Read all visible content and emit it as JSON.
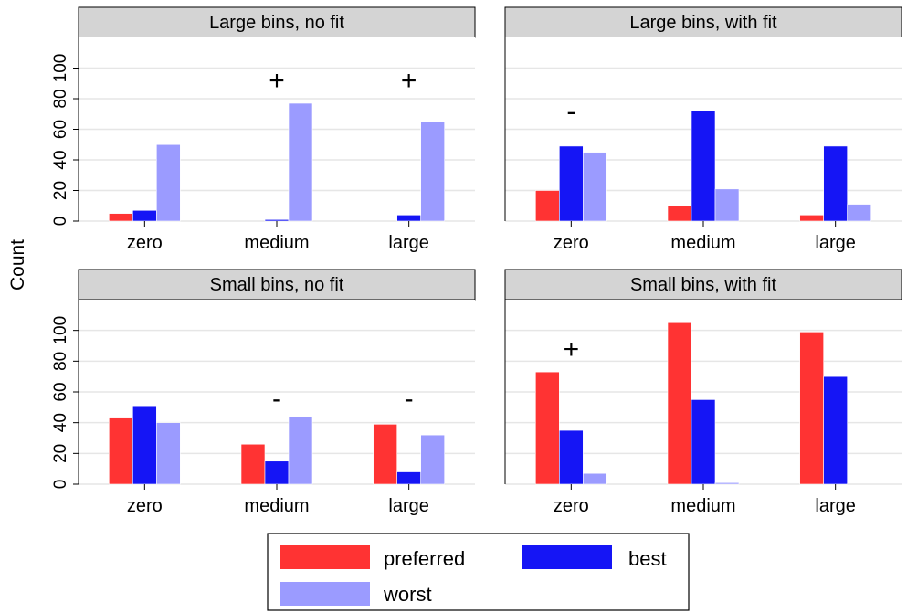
{
  "colors": {
    "preferred": "#ff3333",
    "best": "#1515f5",
    "worst": "#9b9bff",
    "strip": "#d4d4d4",
    "grid": "#e6e6e6"
  },
  "ylabel": "Count",
  "chart_data": [
    {
      "type": "bar",
      "title": "Large bins, no fit",
      "categories": [
        "zero",
        "medium",
        "large"
      ],
      "ylim": [
        0,
        120
      ],
      "yticks": [
        0,
        20,
        40,
        60,
        80,
        100
      ],
      "series": [
        {
          "name": "preferred",
          "values": [
            5,
            0,
            0
          ]
        },
        {
          "name": "best",
          "values": [
            7,
            1,
            4
          ]
        },
        {
          "name": "worst",
          "values": [
            50,
            77,
            65
          ]
        }
      ],
      "annotations": [
        {
          "category": "medium",
          "text": "+",
          "y": 86
        },
        {
          "category": "large",
          "text": "+",
          "y": 86
        }
      ]
    },
    {
      "type": "bar",
      "title": "Large bins, with fit",
      "categories": [
        "zero",
        "medium",
        "large"
      ],
      "ylim": [
        0,
        120
      ],
      "yticks": [
        0,
        20,
        40,
        60,
        80,
        100
      ],
      "series": [
        {
          "name": "preferred",
          "values": [
            20,
            10,
            4
          ]
        },
        {
          "name": "best",
          "values": [
            49,
            72,
            49
          ]
        },
        {
          "name": "worst",
          "values": [
            45,
            21,
            11
          ]
        }
      ],
      "annotations": [
        {
          "category": "zero",
          "text": "-",
          "y": 66
        }
      ]
    },
    {
      "type": "bar",
      "title": "Small bins, no fit",
      "categories": [
        "zero",
        "medium",
        "large"
      ],
      "ylim": [
        0,
        120
      ],
      "yticks": [
        0,
        20,
        40,
        60,
        80,
        100
      ],
      "series": [
        {
          "name": "preferred",
          "values": [
            43,
            26,
            39
          ]
        },
        {
          "name": "best",
          "values": [
            51,
            15,
            8
          ]
        },
        {
          "name": "worst",
          "values": [
            40,
            44,
            32
          ]
        }
      ],
      "annotations": [
        {
          "category": "medium",
          "text": "-",
          "y": 50
        },
        {
          "category": "large",
          "text": "-",
          "y": 50
        }
      ]
    },
    {
      "type": "bar",
      "title": "Small bins, with fit",
      "categories": [
        "zero",
        "medium",
        "large"
      ],
      "ylim": [
        0,
        120
      ],
      "yticks": [
        0,
        20,
        40,
        60,
        80,
        100
      ],
      "series": [
        {
          "name": "preferred",
          "values": [
            73,
            105,
            99
          ]
        },
        {
          "name": "best",
          "values": [
            35,
            55,
            70
          ]
        },
        {
          "name": "worst",
          "values": [
            7,
            1,
            0
          ]
        }
      ],
      "annotations": [
        {
          "category": "zero",
          "text": "+",
          "y": 82
        }
      ]
    }
  ],
  "legend": {
    "placement": "bottom",
    "items": [
      {
        "label": "preferred",
        "series": "preferred"
      },
      {
        "label": "best",
        "series": "best"
      },
      {
        "label": "worst",
        "series": "worst"
      }
    ]
  }
}
